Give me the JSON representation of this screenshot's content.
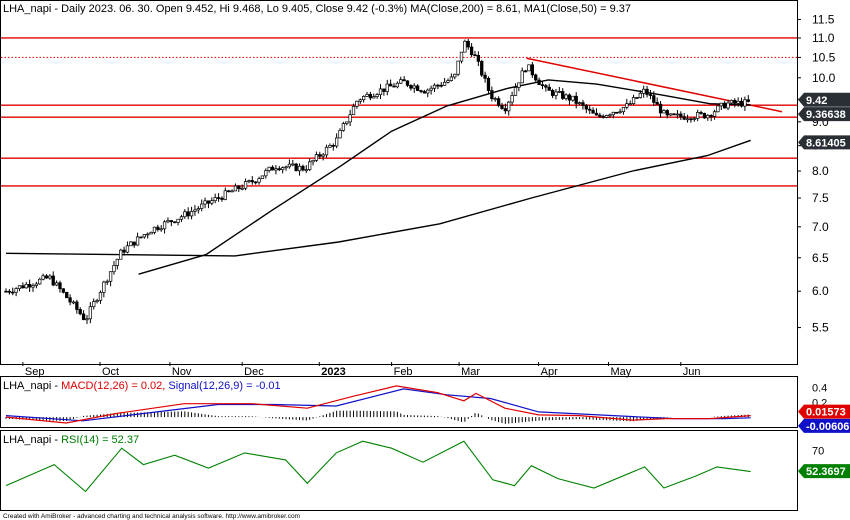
{
  "main_header": {
    "symbol": "LHA_napi",
    "ohlc_text": " - Daily 2023. 06. 30. Open 9.452, Hi 9.468, Lo 9.405, Close 9.42 (-0.3%) ",
    "ma200_text": "MA(Close,200) = 8.61, ",
    "ma50_text": "MA1(Close,50) = 9.37"
  },
  "macd_header": {
    "symbol": "LHA_napi",
    "macd_text": "MACD(12,26) = 0.02, ",
    "signal_text": "Signal(12,26,9) = -0.01"
  },
  "rsi_header": {
    "symbol": "LHA_napi",
    "rsi_text": "RSI(14) = 52.37"
  },
  "footer": "Created with AmiBroker - advanced charting and technical analysis software. http://www.amibroker.com",
  "colors": {
    "price": "#000000",
    "horizontal_line": "#e00000",
    "trendline": "#e00000",
    "ma": "#000000",
    "macd": "#e00000",
    "signal": "#1010c8",
    "histogram": "#000000",
    "rsi": "#008000",
    "macd_badge": "#e00000",
    "signal_badge": "#1010c8",
    "rsi_badge": "#008000"
  },
  "chart_data": [
    {
      "type": "candlestick",
      "x_ticks": [
        "Sep",
        "Oct",
        "Nov",
        "Dec",
        "2023",
        "Feb",
        "Mar",
        "Apr",
        "May",
        "Jun"
      ],
      "y_ticks": [
        "5.5",
        "6.0",
        "6.5",
        "7.0",
        "7.5",
        "8.0",
        "8.5",
        "9.0",
        "9.5",
        "10.0",
        "10.5",
        "11.0",
        "11.5"
      ],
      "ylim": [
        5.2,
        11.65
      ],
      "log_scale": true,
      "grid": false,
      "key_points": [
        {
          "date": "2022-08-25",
          "close": 6.0
        },
        {
          "date": "2022-09-12",
          "close": 6.2
        },
        {
          "date": "2022-09-27",
          "close": 5.6
        },
        {
          "date": "2022-10-03",
          "close": 6.0
        },
        {
          "date": "2022-10-12",
          "close": 6.6
        },
        {
          "date": "2022-10-24",
          "close": 6.95
        },
        {
          "date": "2022-11-07",
          "close": 7.2
        },
        {
          "date": "2022-11-21",
          "close": 7.5
        },
        {
          "date": "2022-12-05",
          "close": 7.8
        },
        {
          "date": "2022-12-15",
          "close": 8.1
        },
        {
          "date": "2022-12-27",
          "close": 8.05
        },
        {
          "date": "2023-01-09",
          "close": 8.6
        },
        {
          "date": "2023-01-18",
          "close": 9.5
        },
        {
          "date": "2023-01-27",
          "close": 9.7
        },
        {
          "date": "2023-02-06",
          "close": 9.9
        },
        {
          "date": "2023-02-15",
          "close": 9.7
        },
        {
          "date": "2023-02-27",
          "close": 10.0
        },
        {
          "date": "2023-03-03",
          "close": 10.9
        },
        {
          "date": "2023-03-07",
          "close": 10.6
        },
        {
          "date": "2023-03-14",
          "close": 9.6
        },
        {
          "date": "2023-03-20",
          "close": 9.3
        },
        {
          "date": "2023-03-29",
          "close": 10.3
        },
        {
          "date": "2023-04-06",
          "close": 9.7
        },
        {
          "date": "2023-04-17",
          "close": 9.5
        },
        {
          "date": "2023-04-27",
          "close": 9.1
        },
        {
          "date": "2023-05-10",
          "close": 9.35
        },
        {
          "date": "2023-05-17",
          "close": 9.7
        },
        {
          "date": "2023-05-26",
          "close": 9.1
        },
        {
          "date": "2023-06-12",
          "close": 9.15
        },
        {
          "date": "2023-06-20",
          "close": 9.4
        },
        {
          "date": "2023-06-30",
          "close": 9.42
        }
      ],
      "horizontal_lines": [
        {
          "value": 11.0,
          "style": "solid"
        },
        {
          "value": 10.5,
          "style": "dotted"
        },
        {
          "value": 9.36638,
          "style": "solid"
        },
        {
          "value": 9.1,
          "style": "solid"
        },
        {
          "value": 8.25,
          "style": "solid"
        },
        {
          "value": 7.72,
          "style": "solid"
        }
      ],
      "trendline": [
        {
          "date": "2023-03-29",
          "value": 10.48
        },
        {
          "date": "2023-07-13",
          "value": 9.22
        }
      ],
      "ma50": [
        {
          "date": "2022-10-19",
          "value": 6.25
        },
        {
          "date": "2022-11-16",
          "value": 6.55
        },
        {
          "date": "2022-12-14",
          "value": 7.3
        },
        {
          "date": "2023-01-11",
          "value": 8.1
        },
        {
          "date": "2023-02-01",
          "value": 8.8
        },
        {
          "date": "2023-02-24",
          "value": 9.35
        },
        {
          "date": "2023-03-21",
          "value": 9.75
        },
        {
          "date": "2023-04-07",
          "value": 9.95
        },
        {
          "date": "2023-04-27",
          "value": 9.85
        },
        {
          "date": "2023-05-24",
          "value": 9.6
        },
        {
          "date": "2023-06-13",
          "value": 9.4
        },
        {
          "date": "2023-06-30",
          "value": 9.37
        }
      ],
      "ma200": [
        {
          "date": "2022-08-25",
          "value": 6.57
        },
        {
          "date": "2022-10-10",
          "value": 6.55
        },
        {
          "date": "2022-11-28",
          "value": 6.53
        },
        {
          "date": "2023-01-10",
          "value": 6.75
        },
        {
          "date": "2023-02-21",
          "value": 7.05
        },
        {
          "date": "2023-03-31",
          "value": 7.5
        },
        {
          "date": "2023-05-12",
          "value": 8.0
        },
        {
          "date": "2023-06-12",
          "value": 8.3
        },
        {
          "date": "2023-06-30",
          "value": 8.61
        }
      ],
      "badges": [
        {
          "label": "9.42",
          "value": 9.42,
          "style": "dark"
        },
        {
          "label": "9.36638",
          "value": 9.36638,
          "style": "dark"
        },
        {
          "label": "8.61405",
          "value": 8.61,
          "style": "dark"
        }
      ]
    },
    {
      "type": "line",
      "panel": "MACD",
      "y_ticks": [
        "0.4",
        "0.2"
      ],
      "ylim": [
        -0.12,
        0.5
      ],
      "series": [
        {
          "name": "MACD(12,26)",
          "points": [
            {
              "date": "2022-08-25",
              "value": 0.0
            },
            {
              "date": "2022-09-19",
              "value": -0.08
            },
            {
              "date": "2022-10-10",
              "value": 0.05
            },
            {
              "date": "2022-11-07",
              "value": 0.18
            },
            {
              "date": "2022-12-05",
              "value": 0.18
            },
            {
              "date": "2022-12-28",
              "value": 0.12
            },
            {
              "date": "2023-01-16",
              "value": 0.28
            },
            {
              "date": "2023-02-03",
              "value": 0.42
            },
            {
              "date": "2023-02-20",
              "value": 0.33
            },
            {
              "date": "2023-03-03",
              "value": 0.22
            },
            {
              "date": "2023-03-08",
              "value": 0.32
            },
            {
              "date": "2023-03-20",
              "value": 0.12
            },
            {
              "date": "2023-04-03",
              "value": 0.03
            },
            {
              "date": "2023-04-20",
              "value": 0.02
            },
            {
              "date": "2023-05-12",
              "value": -0.04
            },
            {
              "date": "2023-05-26",
              "value": -0.02
            },
            {
              "date": "2023-06-13",
              "value": -0.02
            },
            {
              "date": "2023-06-30",
              "value": 0.02
            }
          ]
        },
        {
          "name": "Signal(12,26,9)",
          "points": [
            {
              "date": "2022-08-25",
              "value": 0.02
            },
            {
              "date": "2022-09-26",
              "value": -0.05
            },
            {
              "date": "2022-10-24",
              "value": 0.06
            },
            {
              "date": "2022-11-21",
              "value": 0.17
            },
            {
              "date": "2022-12-14",
              "value": 0.17
            },
            {
              "date": "2023-01-09",
              "value": 0.15
            },
            {
              "date": "2023-02-06",
              "value": 0.38
            },
            {
              "date": "2023-02-24",
              "value": 0.3
            },
            {
              "date": "2023-03-14",
              "value": 0.25
            },
            {
              "date": "2023-04-03",
              "value": 0.07
            },
            {
              "date": "2023-05-04",
              "value": 0.02
            },
            {
              "date": "2023-05-29",
              "value": -0.02
            },
            {
              "date": "2023-06-19",
              "value": -0.02
            },
            {
              "date": "2023-06-30",
              "value": -0.01
            }
          ]
        }
      ],
      "badges": [
        {
          "label": "0.01573",
          "value": 0.02,
          "style": "macd"
        },
        {
          "label": "-0.00606",
          "value": -0.01,
          "style": "signal"
        }
      ]
    },
    {
      "type": "line",
      "panel": "RSI",
      "y_ticks": [
        "70"
      ],
      "ylim": [
        20,
        85
      ],
      "series": [
        {
          "name": "RSI(14)",
          "points": [
            {
              "date": "2022-08-25",
              "value": 40
            },
            {
              "date": "2022-09-14",
              "value": 58
            },
            {
              "date": "2022-09-27",
              "value": 35
            },
            {
              "date": "2022-10-12",
              "value": 72
            },
            {
              "date": "2022-10-21",
              "value": 58
            },
            {
              "date": "2022-11-03",
              "value": 66
            },
            {
              "date": "2022-11-17",
              "value": 55
            },
            {
              "date": "2022-12-02",
              "value": 68
            },
            {
              "date": "2022-12-19",
              "value": 62
            },
            {
              "date": "2022-12-28",
              "value": 42
            },
            {
              "date": "2023-01-09",
              "value": 68
            },
            {
              "date": "2023-01-20",
              "value": 78
            },
            {
              "date": "2023-02-01",
              "value": 72
            },
            {
              "date": "2023-02-14",
              "value": 60
            },
            {
              "date": "2023-03-03",
              "value": 78
            },
            {
              "date": "2023-03-15",
              "value": 45
            },
            {
              "date": "2023-03-24",
              "value": 40
            },
            {
              "date": "2023-03-31",
              "value": 57
            },
            {
              "date": "2023-04-11",
              "value": 46
            },
            {
              "date": "2023-04-26",
              "value": 38
            },
            {
              "date": "2023-05-17",
              "value": 56
            },
            {
              "date": "2023-05-25",
              "value": 38
            },
            {
              "date": "2023-06-07",
              "value": 48
            },
            {
              "date": "2023-06-16",
              "value": 56
            },
            {
              "date": "2023-06-30",
              "value": 52
            }
          ]
        }
      ],
      "badges": [
        {
          "label": "52.3697",
          "value": 52.37,
          "style": "rsi"
        }
      ]
    }
  ]
}
